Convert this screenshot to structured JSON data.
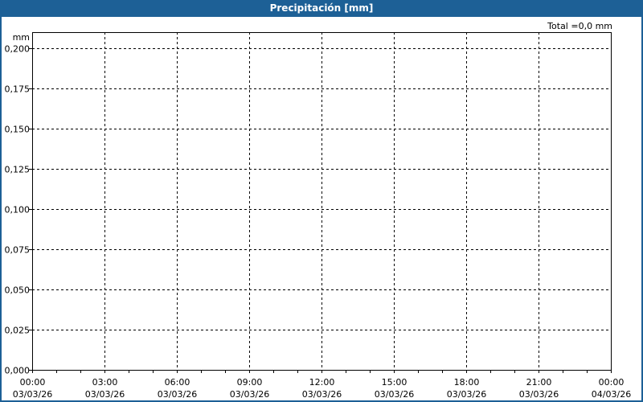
{
  "window": {
    "title": "Precipitación [mm]"
  },
  "colors": {
    "titlebar": "#1d6096",
    "grid": "#000000",
    "background": "#ffffff"
  },
  "chart_data": {
    "type": "bar",
    "title": "Precipitación [mm]",
    "ylabel": "mm",
    "annotation": "Total =0,0 mm",
    "ylim": [
      0,
      0.21
    ],
    "yticks": [
      "0,000",
      "0,025",
      "0,050",
      "0,075",
      "0,100",
      "0,125",
      "0,150",
      "0,175",
      "0,200"
    ],
    "ytick_values": [
      0,
      0.025,
      0.05,
      0.075,
      0.1,
      0.125,
      0.15,
      0.175,
      0.2
    ],
    "xrange": [
      "03/03/26 00:00",
      "04/03/26 00:00"
    ],
    "xticks": [
      {
        "time": "00:00",
        "date": "03/03/26"
      },
      {
        "time": "03:00",
        "date": "03/03/26"
      },
      {
        "time": "06:00",
        "date": "03/03/26"
      },
      {
        "time": "09:00",
        "date": "03/03/26"
      },
      {
        "time": "12:00",
        "date": "03/03/26"
      },
      {
        "time": "15:00",
        "date": "03/03/26"
      },
      {
        "time": "18:00",
        "date": "03/03/26"
      },
      {
        "time": "21:00",
        "date": "03/03/26"
      },
      {
        "time": "00:00",
        "date": "04/03/26"
      }
    ],
    "values": [],
    "grid": true
  }
}
